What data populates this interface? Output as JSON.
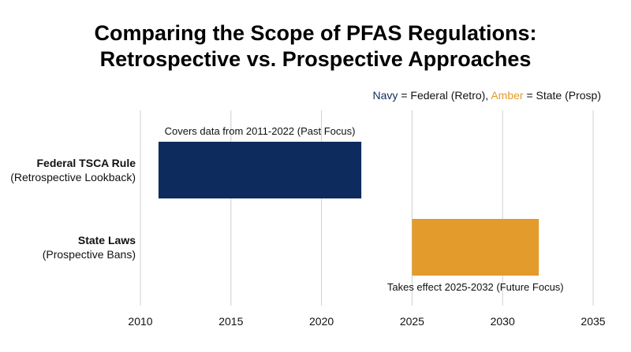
{
  "header": {
    "title_line1": "Comparing the Scope of PFAS Regulations:",
    "title_line2": "Retrospective vs. Prospective Approaches"
  },
  "legend": {
    "navy_word": "Navy",
    "navy_text": " = Federal (Retro), ",
    "amber_word": "Amber",
    "amber_text": " = State (Prosp)"
  },
  "colors": {
    "navy": "#0d2b5c",
    "amber": "#e39b2b",
    "grid": "#cfcfcf"
  },
  "chart_data": {
    "type": "bar",
    "orientation": "horizontal-range",
    "xlim": [
      2010,
      2035
    ],
    "xticks": [
      2010,
      2015,
      2020,
      2025,
      2030,
      2035
    ],
    "grid": "vertical",
    "legend_placement": "top-right",
    "series": [
      {
        "label": "Federal TSCA Rule",
        "sublabel": "(Retrospective Lookback)",
        "start": 2011,
        "end": 2022.2,
        "color": "#0d2b5c",
        "annotation": "Covers data from 2011-2022 (Past Focus)",
        "annotation_position": "above"
      },
      {
        "label": "State Laws",
        "sublabel": "(Prospective Bans)",
        "start": 2025,
        "end": 2032,
        "color": "#e39b2b",
        "annotation": "Takes effect 2025-2032 (Future Focus)",
        "annotation_position": "below"
      }
    ]
  }
}
